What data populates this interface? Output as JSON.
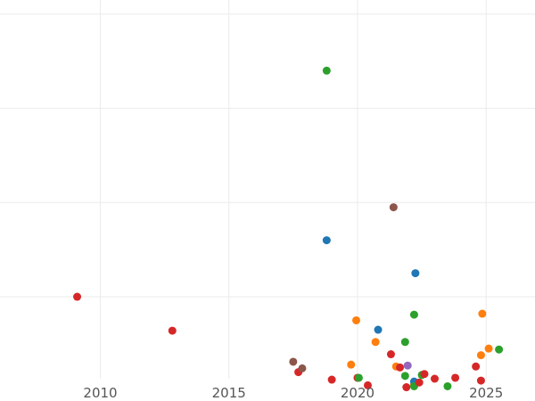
{
  "chart_data": {
    "type": "scatter",
    "title": "",
    "xlabel": "",
    "ylabel": "",
    "grid": true,
    "legend": "none",
    "xlim": [
      2006.1,
      2026.9
    ],
    "ylim": [
      0.13,
      4.15
    ],
    "x_ticks": [
      2010,
      2015,
      2020,
      2025
    ],
    "x_tick_labels": [
      "2010",
      "2015",
      "2020",
      "2025"
    ],
    "y_grid_values": [
      1.0,
      2.0,
      3.0,
      4.0
    ],
    "colors": {
      "blue": "#1f77b4",
      "orange": "#ff7f0e",
      "green": "#2ca02c",
      "red": "#d62728",
      "purple": "#9467bd",
      "brown": "#8c564b"
    },
    "points": [
      {
        "x": 2009.1,
        "y": 1.0,
        "color": "red"
      },
      {
        "x": 2012.8,
        "y": 0.64,
        "color": "red"
      },
      {
        "x": 2017.5,
        "y": 0.31,
        "color": "brown"
      },
      {
        "x": 2017.7,
        "y": 0.2,
        "color": "red"
      },
      {
        "x": 2017.85,
        "y": 0.24,
        "color": "brown"
      },
      {
        "x": 2018.8,
        "y": 3.4,
        "color": "green"
      },
      {
        "x": 2018.8,
        "y": 1.6,
        "color": "blue"
      },
      {
        "x": 2019.0,
        "y": 0.12,
        "color": "red"
      },
      {
        "x": 2019.75,
        "y": 0.28,
        "color": "orange"
      },
      {
        "x": 2019.95,
        "y": 0.75,
        "color": "orange"
      },
      {
        "x": 2020.0,
        "y": 0.14,
        "color": "red"
      },
      {
        "x": 2020.05,
        "y": 0.14,
        "color": "green"
      },
      {
        "x": 2020.4,
        "y": 0.06,
        "color": "red"
      },
      {
        "x": 2020.7,
        "y": 0.52,
        "color": "orange"
      },
      {
        "x": 2020.8,
        "y": 0.65,
        "color": "blue"
      },
      {
        "x": 2021.3,
        "y": 0.39,
        "color": "red"
      },
      {
        "x": 2021.4,
        "y": 1.95,
        "color": "brown"
      },
      {
        "x": 2021.5,
        "y": 0.26,
        "color": "orange"
      },
      {
        "x": 2021.65,
        "y": 0.25,
        "color": "red"
      },
      {
        "x": 2021.85,
        "y": 0.16,
        "color": "green"
      },
      {
        "x": 2021.85,
        "y": 0.52,
        "color": "green"
      },
      {
        "x": 2021.9,
        "y": 0.04,
        "color": "red"
      },
      {
        "x": 2021.95,
        "y": 0.27,
        "color": "purple"
      },
      {
        "x": 2022.2,
        "y": 0.07,
        "color": "orange"
      },
      {
        "x": 2022.2,
        "y": 0.1,
        "color": "blue"
      },
      {
        "x": 2022.2,
        "y": 0.05,
        "color": "green"
      },
      {
        "x": 2022.2,
        "y": 0.81,
        "color": "green"
      },
      {
        "x": 2022.25,
        "y": 1.25,
        "color": "blue"
      },
      {
        "x": 2022.4,
        "y": 0.09,
        "color": "red"
      },
      {
        "x": 2022.5,
        "y": 0.17,
        "color": "green"
      },
      {
        "x": 2022.6,
        "y": 0.18,
        "color": "red"
      },
      {
        "x": 2023.0,
        "y": 0.13,
        "color": "red"
      },
      {
        "x": 2023.5,
        "y": 0.05,
        "color": "green"
      },
      {
        "x": 2023.8,
        "y": 0.14,
        "color": "red"
      },
      {
        "x": 2024.6,
        "y": 0.26,
        "color": "red"
      },
      {
        "x": 2024.8,
        "y": 0.38,
        "color": "orange"
      },
      {
        "x": 2024.8,
        "y": 0.11,
        "color": "red"
      },
      {
        "x": 2024.85,
        "y": 0.82,
        "color": "orange"
      },
      {
        "x": 2025.1,
        "y": 0.45,
        "color": "orange"
      },
      {
        "x": 2025.5,
        "y": 0.44,
        "color": "green"
      }
    ]
  }
}
